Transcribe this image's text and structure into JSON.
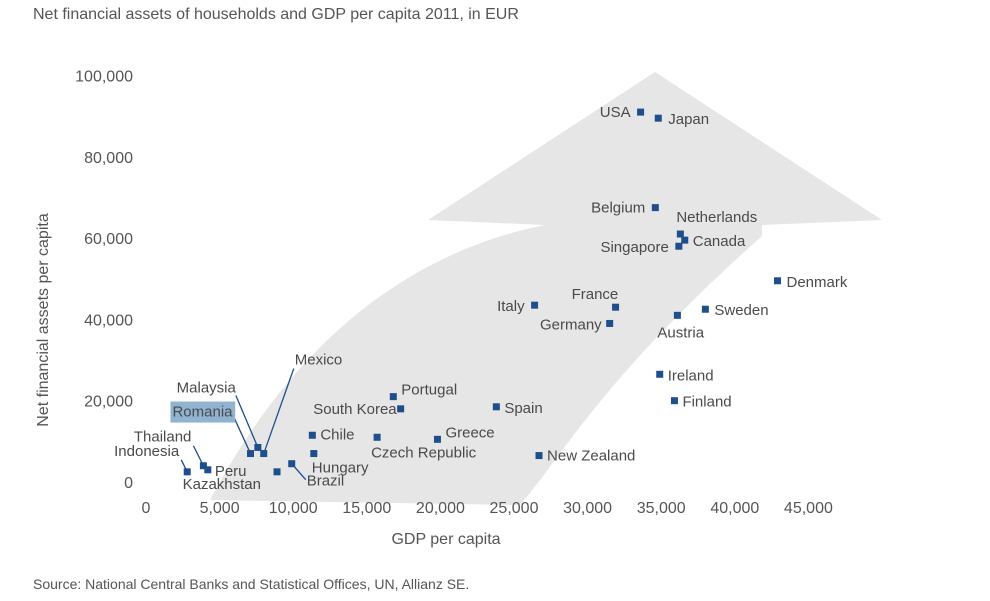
{
  "chart_data": {
    "type": "scatter",
    "title": "Net financial assets of households and GDP per capita 2011, in EUR",
    "xlabel": "GDP per capita",
    "ylabel": "Net financial assets per capita",
    "xlim": [
      0,
      47000
    ],
    "ylim": [
      0,
      100000
    ],
    "xticks": [
      "0",
      "5,000",
      "10,000",
      "15,000",
      "20,000",
      "25,000",
      "30,000",
      "35,000",
      "40,000",
      "45,000"
    ],
    "xtick_values": [
      0,
      5000,
      10000,
      15000,
      20000,
      25000,
      30000,
      35000,
      40000,
      45000
    ],
    "yticks": [
      "0",
      "20,000",
      "40,000",
      "60,000",
      "80,000",
      "100,000"
    ],
    "ytick_values": [
      0,
      20000,
      40000,
      60000,
      80000,
      100000
    ],
    "grid": false,
    "highlight_color": "#8fb3d0",
    "marker_color": "#1f4e8c",
    "arrow_color": "#e6e6e6",
    "highlighted": "Romania",
    "points": [
      {
        "name": "USA",
        "x": 33600,
        "y": 91000
      },
      {
        "name": "Japan",
        "x": 34800,
        "y": 89500
      },
      {
        "name": "Belgium",
        "x": 34600,
        "y": 67500
      },
      {
        "name": "Netherlands",
        "x": 36300,
        "y": 61000
      },
      {
        "name": "Canada",
        "x": 36600,
        "y": 59500
      },
      {
        "name": "Singapore",
        "x": 36200,
        "y": 58000
      },
      {
        "name": "Denmark",
        "x": 42900,
        "y": 49500
      },
      {
        "name": "Italy",
        "x": 26400,
        "y": 43500
      },
      {
        "name": "France",
        "x": 31900,
        "y": 43000
      },
      {
        "name": "Sweden",
        "x": 38000,
        "y": 42500
      },
      {
        "name": "Austria",
        "x": 36100,
        "y": 41000
      },
      {
        "name": "Germany",
        "x": 31500,
        "y": 39000
      },
      {
        "name": "Ireland",
        "x": 34900,
        "y": 26500
      },
      {
        "name": "Finland",
        "x": 35900,
        "y": 20000
      },
      {
        "name": "Portugal",
        "x": 16800,
        "y": 21000
      },
      {
        "name": "South Korea",
        "x": 17300,
        "y": 18000
      },
      {
        "name": "Spain",
        "x": 23800,
        "y": 18500
      },
      {
        "name": "Chile",
        "x": 11300,
        "y": 11500
      },
      {
        "name": "Czech Republic",
        "x": 15700,
        "y": 11000
      },
      {
        "name": "Greece",
        "x": 19800,
        "y": 10500
      },
      {
        "name": "Hungary",
        "x": 11400,
        "y": 7000
      },
      {
        "name": "New Zealand",
        "x": 26700,
        "y": 6500
      },
      {
        "name": "Mexico",
        "x": 8000,
        "y": 7000
      },
      {
        "name": "Malaysia",
        "x": 7600,
        "y": 8500
      },
      {
        "name": "Romania",
        "x": 7100,
        "y": 7000
      },
      {
        "name": "Brazil",
        "x": 9900,
        "y": 4500
      },
      {
        "name": "Thailand",
        "x": 3900,
        "y": 4000
      },
      {
        "name": "Peru",
        "x": 4200,
        "y": 3000
      },
      {
        "name": "Indonesia",
        "x": 2800,
        "y": 2500
      },
      {
        "name": "Kazakhstan",
        "x": 8900,
        "y": 2500
      }
    ]
  },
  "source": "Source: National Central Banks and Statistical Offices, UN, Allianz SE."
}
